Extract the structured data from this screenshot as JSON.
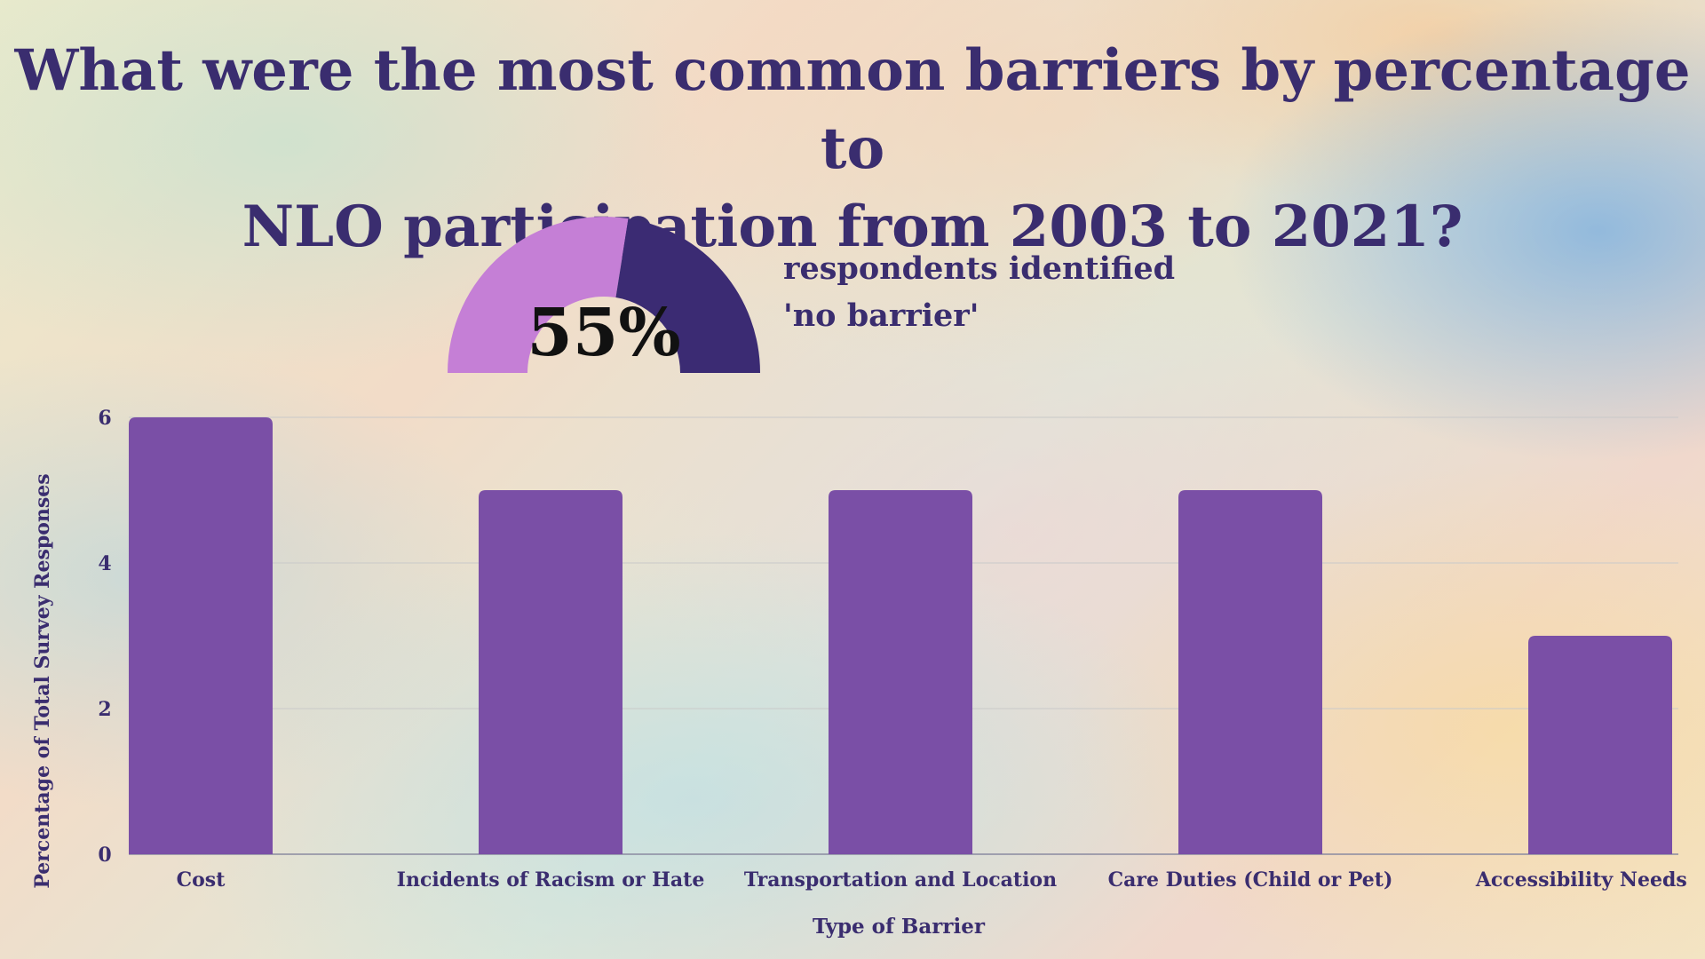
{
  "title_lines": [
    "What were the most common barriers by percentage to",
    "NLO participation from 2003 to 2021?"
  ],
  "gauge": {
    "value": 55,
    "value_label": "55%",
    "caption_lines": [
      "respondents identified",
      "'no barrier'"
    ]
  },
  "colors": {
    "title": "#3a2d6f",
    "bar": "#7a4fa6",
    "gauge_primary": "#c57fd6",
    "gauge_secondary": "#3b2b73",
    "grid": "#c9c9c9"
  },
  "chart_data": {
    "type": "bar",
    "title": "What were the most common barriers by percentage to NLO participation from 2003 to 2021?",
    "xlabel": "Type of Barrier",
    "ylabel": "Percentage of Total Survey Responses",
    "categories": [
      "Cost",
      "Incidents of Racism or Hate",
      "Transportation and Location",
      "Care Duties (Child or Pet)",
      "Accessibility Needs"
    ],
    "values": [
      6,
      5,
      5,
      5,
      3
    ],
    "ylim": [
      0,
      6
    ],
    "yticks": [
      "0",
      "2",
      "4",
      "6"
    ],
    "grid": true
  }
}
